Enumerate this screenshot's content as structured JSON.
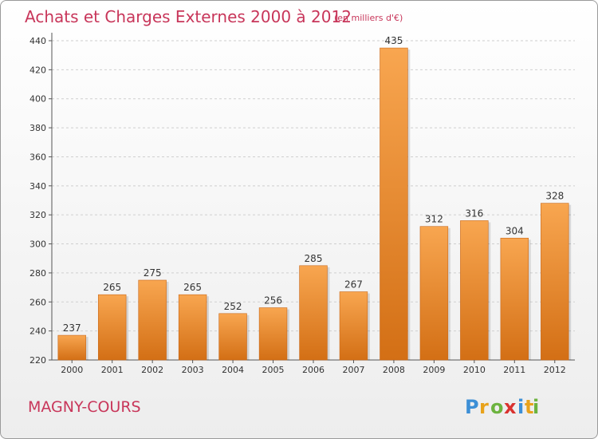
{
  "chart_data": {
    "type": "bar",
    "title": "Achats et Charges Externes 2000 à 2012",
    "unit": "(en milliers d'€)",
    "categories": [
      "2000",
      "2001",
      "2002",
      "2003",
      "2004",
      "2005",
      "2006",
      "2007",
      "2008",
      "2009",
      "2010",
      "2011",
      "2012"
    ],
    "values": [
      237,
      265,
      275,
      265,
      252,
      256,
      285,
      267,
      435,
      312,
      316,
      304,
      328
    ],
    "ylim": [
      220,
      440
    ],
    "yticks": [
      220,
      240,
      260,
      280,
      300,
      320,
      340,
      360,
      380,
      400,
      420,
      440
    ],
    "grid": true,
    "bar_color_light": "#f8a650",
    "bar_color_dark": "#d36f15",
    "title_color": "#c8365a"
  },
  "commune": "MAGNY-COURS",
  "logo": {
    "text": "Proxiti",
    "letter_colors": [
      "#3c8fd6",
      "#e8a21b",
      "#6cb33f",
      "#d9322f",
      "#3c8fd6",
      "#e8a21b",
      "#6cb33f"
    ]
  }
}
